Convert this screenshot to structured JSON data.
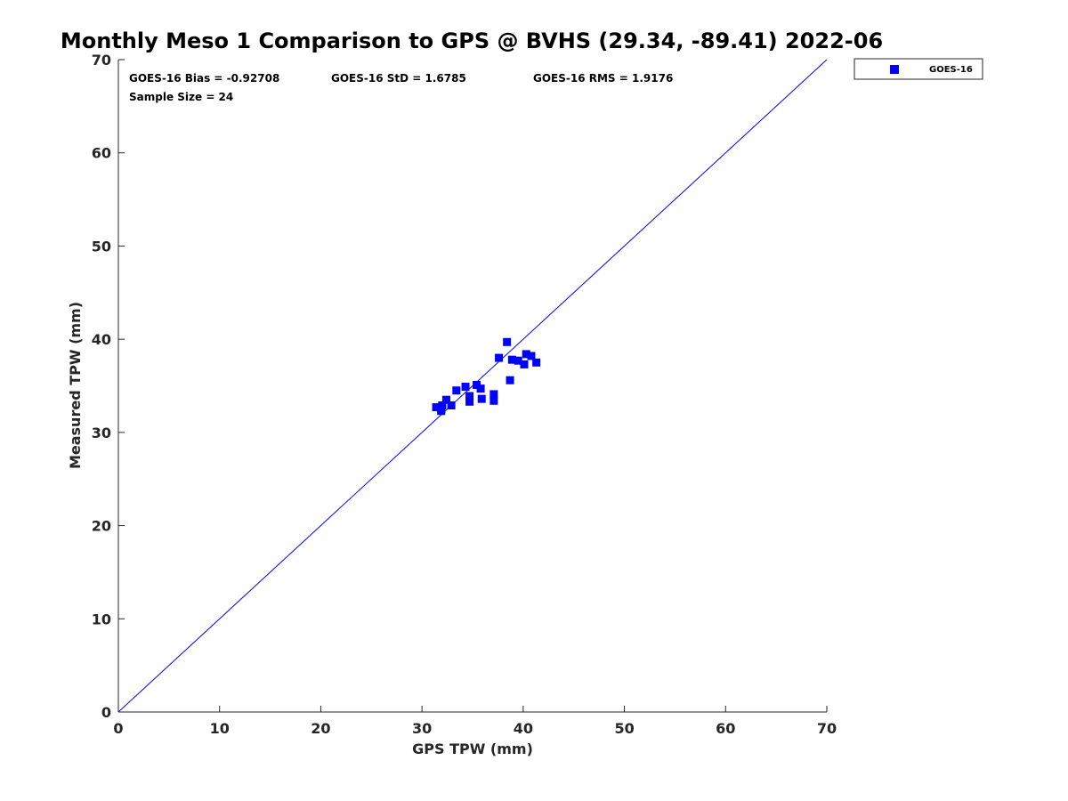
{
  "chart_data": {
    "type": "scatter",
    "title": "Monthly Meso 1 Comparison to GPS @ BVHS (29.34, -89.41) 2022-06",
    "xlabel": "GPS TPW (mm)",
    "ylabel": "Measured TPW (mm)",
    "xlim": [
      0,
      70
    ],
    "ylim": [
      0,
      70
    ],
    "x_ticks": [
      0,
      10,
      20,
      30,
      40,
      50,
      60,
      70
    ],
    "y_ticks": [
      0,
      10,
      20,
      30,
      40,
      50,
      60,
      70
    ],
    "grid": false,
    "legend_position": "outside top-right",
    "reference_line": {
      "name": "1:1 line",
      "color": "#0000ff",
      "x": [
        0,
        70
      ],
      "y": [
        0,
        70
      ]
    },
    "series": [
      {
        "name": "GOES-16",
        "marker": "square",
        "color": "#0000ff",
        "x": [
          31.4,
          31.9,
          32.0,
          32.4,
          32.9,
          33.4,
          34.3,
          34.7,
          34.7,
          35.4,
          35.8,
          35.9,
          37.1,
          37.1,
          37.6,
          38.4,
          38.7,
          38.9,
          39.5,
          40.1,
          40.3,
          40.8,
          41.3,
          31.9
        ],
        "y": [
          32.7,
          32.3,
          32.9,
          33.5,
          32.9,
          34.5,
          34.9,
          33.3,
          33.9,
          35.1,
          34.7,
          33.6,
          33.4,
          34.1,
          38.0,
          39.7,
          35.6,
          37.8,
          37.7,
          37.3,
          38.4,
          38.2,
          37.5,
          32.5
        ]
      }
    ],
    "annotations": {
      "bias": "GOES-16 Bias = -0.92708",
      "std": "GOES-16 StD = 1.6785",
      "rms": "GOES-16 RMS = 1.9176",
      "sample_size": "Sample Size = 24"
    }
  }
}
